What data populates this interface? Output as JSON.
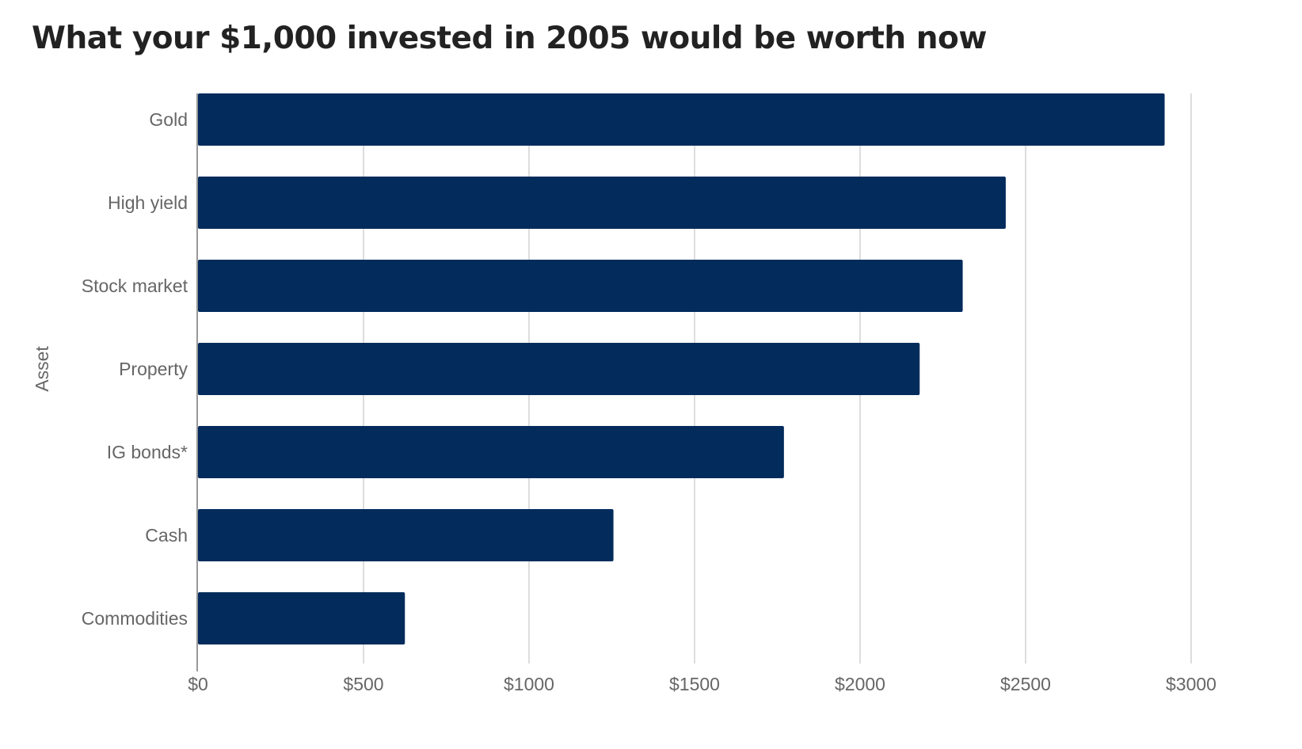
{
  "chart_data": {
    "type": "bar",
    "orientation": "horizontal",
    "title": "What your $1,000 invested in 2005 would be worth now",
    "xlabel": "",
    "ylabel": "Asset",
    "categories": [
      "Gold",
      "High yield",
      "Stock market",
      "Property",
      "IG bonds*",
      "Cash",
      "Commodities"
    ],
    "values": [
      2920,
      2440,
      2310,
      2180,
      1770,
      1255,
      625
    ],
    "xlim": [
      0,
      3000
    ],
    "ticks": [
      0,
      500,
      1000,
      1500,
      2000,
      2500,
      3000
    ],
    "tick_labels": [
      "$0",
      "$500",
      "$1000",
      "$1500",
      "$2000",
      "$2500",
      "$3000"
    ],
    "bar_color": "#032b5c",
    "grid": true
  }
}
